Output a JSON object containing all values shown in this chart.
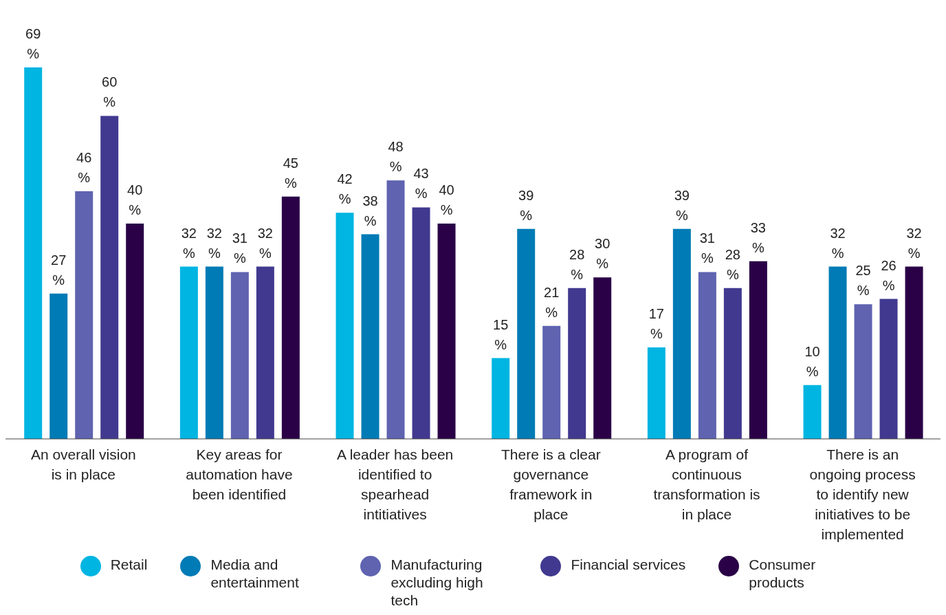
{
  "chart_data": {
    "type": "bar",
    "categories": [
      "An overall vision is in place",
      "Key areas for automation have been identified",
      "A leader has been identified to spearhead intitiatives",
      "There is a clear governance framework in place",
      "A program of continuous transformation is in place",
      "There is an ongoing process to identify new initiatives to be implemented"
    ],
    "series": [
      {
        "name": "Retail",
        "color": "#00b5e2",
        "values": [
          69,
          32,
          42,
          15,
          17,
          10
        ],
        "value_labels": [
          "69%",
          "32%",
          "42%",
          "15%",
          "17%",
          "10%"
        ]
      },
      {
        "name": "Media and entertainment",
        "color": "#007bb5",
        "values": [
          27,
          32,
          38,
          39,
          39,
          32
        ],
        "value_labels": [
          "27%",
          "32%",
          "38%",
          "39%",
          "39%",
          "32%"
        ]
      },
      {
        "name": "Manufacturing excluding high tech",
        "color": "#5f63b0",
        "values": [
          46,
          31,
          48,
          21,
          31,
          25
        ],
        "value_labels": [
          "46%",
          "31%",
          "48%",
          "21%",
          "31%",
          "25%"
        ]
      },
      {
        "name": "Financial services",
        "color": "#41398f",
        "values": [
          60,
          32,
          43,
          28,
          28,
          26
        ],
        "value_labels": [
          "60%",
          "32%",
          "43%",
          "28%",
          "28%",
          "26%"
        ]
      },
      {
        "name": "Consumer products",
        "color": "#2a0047",
        "values": [
          40,
          45,
          40,
          30,
          33,
          32
        ],
        "value_labels": [
          "40%",
          "45%",
          "40%",
          "30%",
          "33%",
          "32%"
        ]
      }
    ],
    "legend": "bottom",
    "tick_labels": "x",
    "grid": false
  }
}
